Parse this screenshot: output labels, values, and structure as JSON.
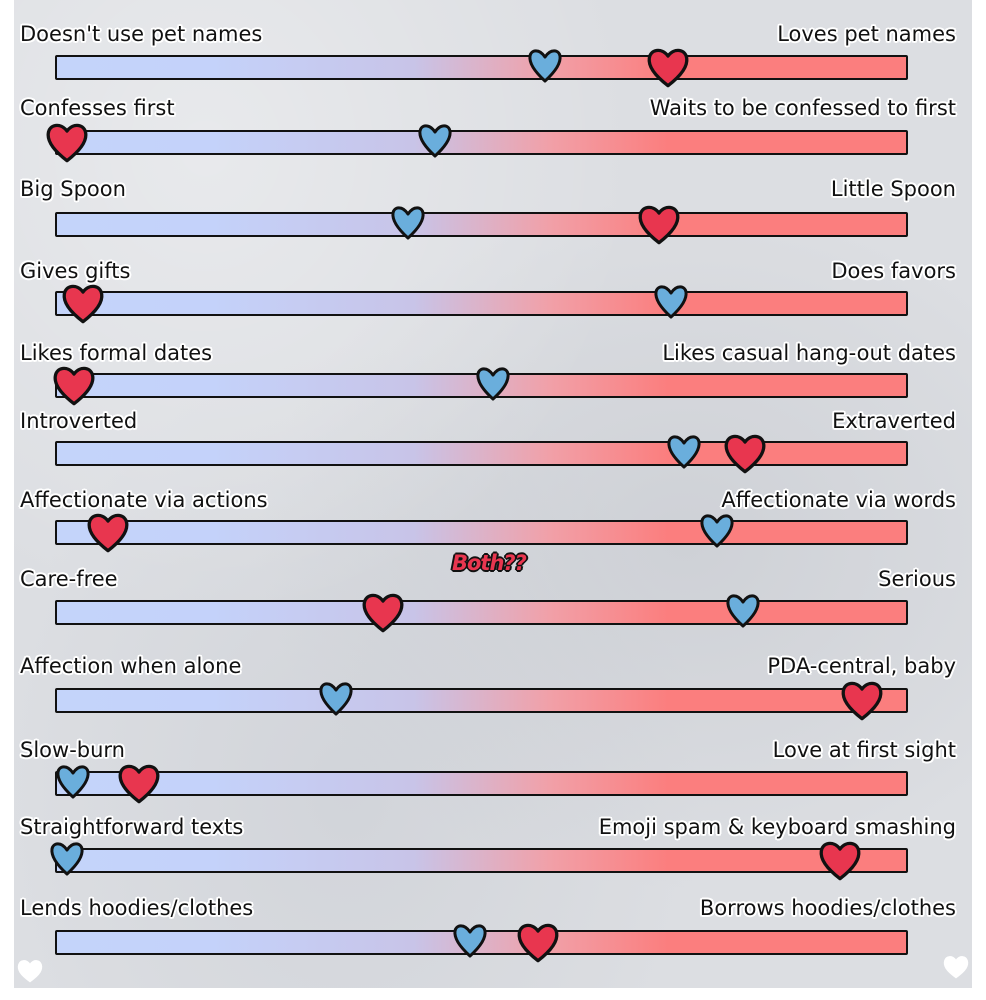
{
  "colors": {
    "blue_heart": "#6aaedc",
    "red_heart": "#e8364f",
    "track_left": "#c4d4fa",
    "track_right": "#fb7e7e",
    "outline": "#111111"
  },
  "markers": {
    "blue_icon": "blue-heart-icon",
    "red_icon": "red-heart-icon"
  },
  "rows": [
    {
      "left": "Doesn't use pet names",
      "right": "Loves pet names",
      "blue": 0.574,
      "red": 0.717
    },
    {
      "left": "Confesses first",
      "right": "Waits to be confessed to first",
      "blue": 0.446,
      "red": 0.013
    },
    {
      "left": "Big Spoon",
      "right": "Little Spoon",
      "blue": 0.414,
      "red": 0.707
    },
    {
      "left": "Gives gifts",
      "right": "Does favors",
      "blue": 0.722,
      "red": 0.032
    },
    {
      "left": "Likes formal dates",
      "right": "Likes casual hang-out dates",
      "blue": 0.514,
      "red": 0.021
    },
    {
      "left": "Introverted",
      "right": "Extraverted",
      "blue": 0.737,
      "red": 0.808
    },
    {
      "left": "Affectionate via actions",
      "right": "Affectionate via words",
      "blue": 0.776,
      "red": 0.061
    },
    {
      "left": "Care-free",
      "right": "Serious",
      "blue": 0.806,
      "red": 0.383
    },
    {
      "left": "Affection when alone",
      "right": "PDA-central, baby",
      "blue": 0.329,
      "red": 0.945
    },
    {
      "left": "Slow-burn",
      "right": "Love at first sight",
      "blue": 0.021,
      "red": 0.097
    },
    {
      "left": "Straightforward texts",
      "right": "Emoji spam & keyboard smashing",
      "blue": 0.014,
      "red": 0.919
    },
    {
      "left": "Lends hoodies/clothes",
      "right": "Borrows hoodies/clothes",
      "blue": 0.487,
      "red": 0.565
    }
  ],
  "annotation": "Both??"
}
